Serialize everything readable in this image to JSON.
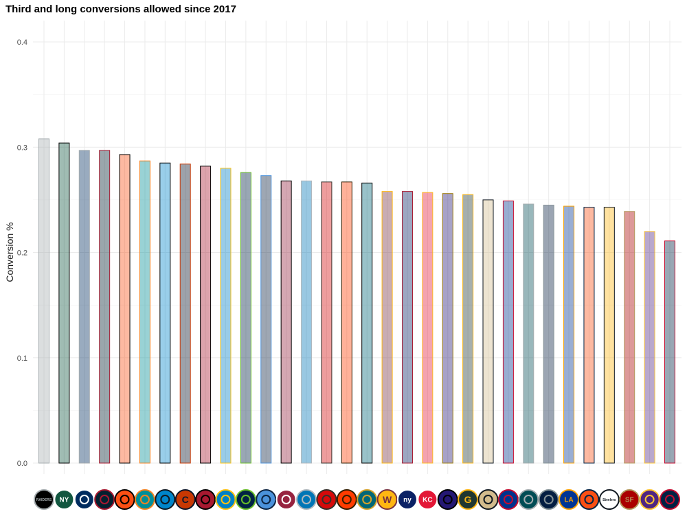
{
  "title": "Third and long conversions allowed since 2017",
  "chart_data": {
    "type": "bar",
    "title": "Third and long conversions allowed since 2017",
    "xlabel": "",
    "ylabel": "Conversion %",
    "ylim": [
      0,
      0.42
    ],
    "y_ticks": [
      0.0,
      0.1,
      0.2,
      0.3,
      0.4
    ],
    "y_tick_labels": [
      "0.0",
      "0.1",
      "0.2",
      "0.3",
      "0.4"
    ],
    "grid": true,
    "x_tick_logos": true,
    "categories": [
      "LV",
      "NYJ",
      "IND",
      "HOU",
      "CIN",
      "MIA",
      "CAR",
      "CHI",
      "ATL",
      "LAC",
      "SEA",
      "TEN",
      "ARI",
      "DET",
      "TB",
      "CLE",
      "JAX",
      "WAS",
      "NYG",
      "KC",
      "BAL",
      "GB",
      "NO",
      "BUF",
      "PHI",
      "DAL",
      "LA",
      "DEN",
      "PIT",
      "SF",
      "MIN",
      "NE"
    ],
    "values": [
      0.308,
      0.304,
      0.297,
      0.297,
      0.293,
      0.287,
      0.285,
      0.284,
      0.282,
      0.28,
      0.276,
      0.273,
      0.268,
      0.268,
      0.267,
      0.267,
      0.266,
      0.258,
      0.258,
      0.257,
      0.256,
      0.255,
      0.25,
      0.249,
      0.246,
      0.245,
      0.244,
      0.243,
      0.243,
      0.239,
      0.22,
      0.211
    ],
    "fill_colors": [
      "#a5acaf",
      "#125740",
      "#002c5f",
      "#03202f",
      "#fb4f14",
      "#008e97",
      "#0085ca",
      "#0b162a",
      "#a71930",
      "#0080c6",
      "#002244",
      "#0c2340",
      "#97233f",
      "#0076b6",
      "#d50a0a",
      "#ff3c00",
      "#006778",
      "#773141",
      "#0b2265",
      "#e31837",
      "#241773",
      "#203731",
      "#d3bc8d",
      "#00338d",
      "#004c54",
      "#041e42",
      "#003594",
      "#fb4f14",
      "#ffb612",
      "#aa0000",
      "#4f2683",
      "#002244"
    ],
    "outline_colors": [
      "#a5acaf",
      "#000000",
      "#a2aaad",
      "#a71930",
      "#000000",
      "#f58220",
      "#000000",
      "#c83803",
      "#000000",
      "#ffc20e",
      "#69be28",
      "#4b92db",
      "#000000",
      "#b0b7bc",
      "#34302b",
      "#311d00",
      "#000000",
      "#ffb612",
      "#a71930",
      "#ffb81c",
      "#9e7c0c",
      "#ffb612",
      "#101820",
      "#c60c30",
      "#a5acaf",
      "#869397",
      "#ffa300",
      "#002244",
      "#101820",
      "#b3995d",
      "#ffc62f",
      "#c60c30"
    ],
    "bar_opacity": 0.4,
    "logos": [
      {
        "text": "RAIDERS",
        "bg": "#000000",
        "fg": "#a5acaf"
      },
      {
        "text": "NY",
        "bg": "#125740",
        "fg": "#ffffff"
      },
      {
        "text": "",
        "bg": "#002c5f",
        "fg": "#ffffff"
      },
      {
        "text": "",
        "bg": "#03202f",
        "fg": "#a71930"
      },
      {
        "text": "",
        "bg": "#fb4f14",
        "fg": "#000000"
      },
      {
        "text": "",
        "bg": "#008e97",
        "fg": "#f58220"
      },
      {
        "text": "",
        "bg": "#0085ca",
        "fg": "#101820"
      },
      {
        "text": "C",
        "bg": "#c83803",
        "fg": "#0b162a"
      },
      {
        "text": "",
        "bg": "#a71930",
        "fg": "#000000"
      },
      {
        "text": "",
        "bg": "#0080c6",
        "fg": "#ffc20e"
      },
      {
        "text": "",
        "bg": "#002244",
        "fg": "#69be28"
      },
      {
        "text": "",
        "bg": "#4b92db",
        "fg": "#0c2340"
      },
      {
        "text": "",
        "bg": "#97233f",
        "fg": "#ffffff"
      },
      {
        "text": "",
        "bg": "#0076b6",
        "fg": "#b0b7bc"
      },
      {
        "text": "",
        "bg": "#d50a0a",
        "fg": "#34302b"
      },
      {
        "text": "",
        "bg": "#ff3c00",
        "fg": "#311d00"
      },
      {
        "text": "",
        "bg": "#006778",
        "fg": "#d7a22a"
      },
      {
        "text": "W",
        "bg": "#ffb612",
        "fg": "#773141"
      },
      {
        "text": "ny",
        "bg": "#0b2265",
        "fg": "#ffffff"
      },
      {
        "text": "KC",
        "bg": "#e31837",
        "fg": "#ffffff"
      },
      {
        "text": "",
        "bg": "#241773",
        "fg": "#000000"
      },
      {
        "text": "G",
        "bg": "#203731",
        "fg": "#ffb612"
      },
      {
        "text": "",
        "bg": "#d3bc8d",
        "fg": "#101820"
      },
      {
        "text": "",
        "bg": "#00338d",
        "fg": "#c60c30"
      },
      {
        "text": "",
        "bg": "#004c54",
        "fg": "#a5acaf"
      },
      {
        "text": "",
        "bg": "#041e42",
        "fg": "#869397"
      },
      {
        "text": "LA",
        "bg": "#003594",
        "fg": "#ffa300"
      },
      {
        "text": "",
        "bg": "#fb4f14",
        "fg": "#002244"
      },
      {
        "text": "Steelers",
        "bg": "#ffffff",
        "fg": "#101820"
      },
      {
        "text": "SF",
        "bg": "#aa0000",
        "fg": "#b3995d"
      },
      {
        "text": "",
        "bg": "#4f2683",
        "fg": "#ffc62f"
      },
      {
        "text": "",
        "bg": "#002244",
        "fg": "#c60c30"
      }
    ]
  }
}
